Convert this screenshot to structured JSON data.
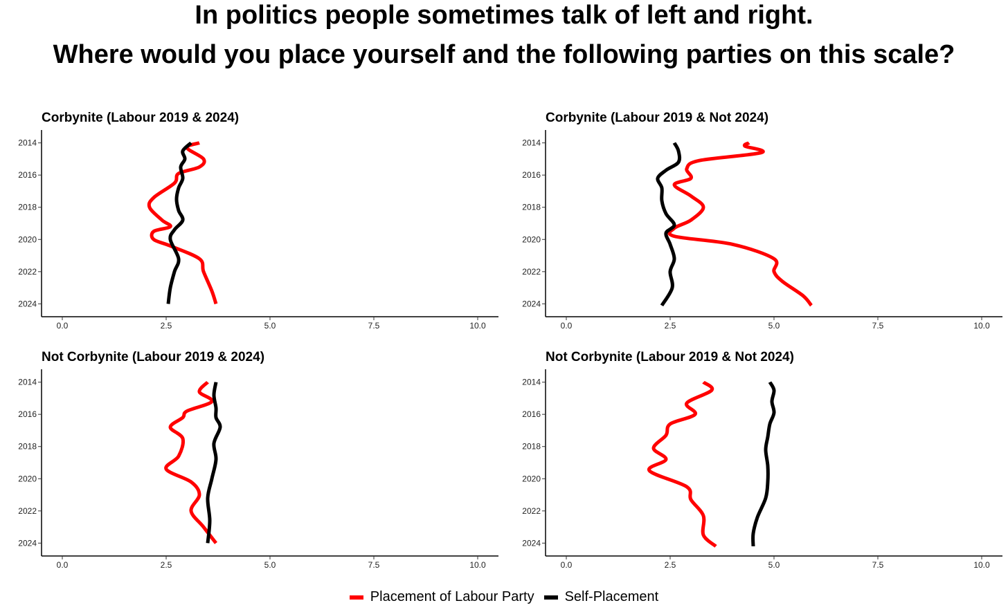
{
  "title": {
    "line1": "In politics people sometimes talk of left and right.",
    "line2": "Where would you place yourself and the following parties on this scale?"
  },
  "colors": {
    "labour_placement": "#ff0000",
    "self_placement": "#000000"
  },
  "chart_data": [
    {
      "type": "line",
      "title": "Corbynite (Labour 2019 & 2024)",
      "xlim": [
        -0.5,
        10.5
      ],
      "ylim": [
        2013.2,
        2024.8
      ],
      "x_ticks": [
        "0.0",
        "2.5",
        "5.0",
        "7.5",
        "10.0"
      ],
      "y_ticks": [
        "2014",
        "2016",
        "2018",
        "2020",
        "2022",
        "2024"
      ],
      "grid": false,
      "legend": "bottom",
      "series": [
        {
          "name": "Placement of Labour Party",
          "color": "#ff0000",
          "x": [
            3.3,
            3.0,
            3.4,
            3.3,
            2.8,
            2.7,
            2.2,
            2.1,
            2.4,
            2.6,
            2.2,
            2.2,
            2.6,
            3.3,
            3.4,
            3.6,
            3.7
          ],
          "y": [
            2014,
            2014.3,
            2015,
            2015.5,
            2015.9,
            2016.5,
            2017.4,
            2018,
            2018.8,
            2019.2,
            2019.5,
            2020,
            2020.4,
            2021.2,
            2022,
            2023.2,
            2024
          ]
        },
        {
          "name": "Self-Placement",
          "color": "#000000",
          "x": [
            3.1,
            2.9,
            2.95,
            2.85,
            2.9,
            2.8,
            2.75,
            2.8,
            2.9,
            2.7,
            2.6,
            2.8,
            2.7,
            2.6,
            2.55
          ],
          "y": [
            2014,
            2014.5,
            2015,
            2015.5,
            2016.2,
            2016.8,
            2017.5,
            2018.2,
            2018.8,
            2019.4,
            2020,
            2021.2,
            2022,
            2023,
            2024
          ]
        }
      ]
    },
    {
      "type": "line",
      "title": "Corbynite (Labour 2019 & Not 2024)",
      "xlim": [
        -0.5,
        10.5
      ],
      "ylim": [
        2013.2,
        2024.8
      ],
      "x_ticks": [
        "0.0",
        "2.5",
        "5.0",
        "7.5",
        "10.0"
      ],
      "y_ticks": [
        "2014",
        "2016",
        "2018",
        "2020",
        "2022",
        "2024"
      ],
      "grid": false,
      "legend": "bottom",
      "series": [
        {
          "name": "Placement of Labour Party",
          "color": "#ff0000",
          "x": [
            4.4,
            4.3,
            4.7,
            3.2,
            2.9,
            3.0,
            2.6,
            3.0,
            3.3,
            3.0,
            2.6,
            2.6,
            4.0,
            5.0,
            5.0,
            5.2,
            5.7,
            5.9
          ],
          "y": [
            2014,
            2014.2,
            2014.6,
            2015.1,
            2015.6,
            2016.2,
            2016.6,
            2017.3,
            2018,
            2018.8,
            2019.3,
            2019.8,
            2020.3,
            2021.2,
            2022,
            2022.6,
            2023.5,
            2024.1
          ]
        },
        {
          "name": "Self-Placement",
          "color": "#000000",
          "x": [
            2.6,
            2.7,
            2.7,
            2.4,
            2.2,
            2.3,
            2.3,
            2.4,
            2.6,
            2.4,
            2.5,
            2.6,
            2.5,
            2.55,
            2.3
          ],
          "y": [
            2014,
            2014.5,
            2015.2,
            2015.7,
            2016.2,
            2016.8,
            2017.6,
            2018.4,
            2019.1,
            2019.6,
            2020.3,
            2021.2,
            2022,
            2023,
            2024.1
          ]
        }
      ]
    },
    {
      "type": "line",
      "title": "Not Corbynite (Labour 2019 & 2024)",
      "xlim": [
        -0.5,
        10.5
      ],
      "ylim": [
        2013.2,
        2024.8
      ],
      "x_ticks": [
        "0.0",
        "2.5",
        "5.0",
        "7.5",
        "10.0"
      ],
      "y_ticks": [
        "2014",
        "2016",
        "2018",
        "2020",
        "2022",
        "2024"
      ],
      "grid": false,
      "legend": "bottom",
      "series": [
        {
          "name": "Placement of Labour Party",
          "color": "#ff0000",
          "x": [
            3.5,
            3.3,
            3.6,
            3.0,
            2.9,
            2.6,
            2.9,
            2.8,
            2.5,
            3.1,
            3.3,
            3.1,
            3.4,
            3.7
          ],
          "y": [
            2014,
            2014.6,
            2015.2,
            2015.8,
            2016.2,
            2016.8,
            2017.5,
            2018.6,
            2019.4,
            2020.2,
            2021,
            2022,
            2023,
            2024
          ]
        },
        {
          "name": "Self-Placement",
          "color": "#000000",
          "x": [
            3.7,
            3.65,
            3.7,
            3.7,
            3.8,
            3.65,
            3.7,
            3.6,
            3.5,
            3.55,
            3.5
          ],
          "y": [
            2014,
            2014.8,
            2015.6,
            2016.2,
            2016.8,
            2017.8,
            2018.8,
            2020,
            2021.2,
            2022.6,
            2024
          ]
        }
      ]
    },
    {
      "type": "line",
      "title": "Not Corbynite (Labour 2019 & Not 2024)",
      "xlim": [
        -0.5,
        10.5
      ],
      "ylim": [
        2013.2,
        2024.8
      ],
      "x_ticks": [
        "0.0",
        "2.5",
        "5.0",
        "7.5",
        "10.0"
      ],
      "y_ticks": [
        "2014",
        "2016",
        "2018",
        "2020",
        "2022",
        "2024"
      ],
      "grid": false,
      "legend": "bottom",
      "series": [
        {
          "name": "Placement of Labour Party",
          "color": "#ff0000",
          "x": [
            3.3,
            3.5,
            2.9,
            3.1,
            2.5,
            2.4,
            2.1,
            2.4,
            2.0,
            2.9,
            3.0,
            3.3,
            3.3,
            3.6
          ],
          "y": [
            2014,
            2014.5,
            2015.3,
            2016,
            2016.6,
            2017.3,
            2018.1,
            2018.8,
            2019.5,
            2020.5,
            2021.3,
            2022.3,
            2023.5,
            2024.2
          ]
        },
        {
          "name": "Self-Placement",
          "color": "#000000",
          "x": [
            4.9,
            5.0,
            4.95,
            5.0,
            4.9,
            4.85,
            4.8,
            4.85,
            4.85,
            4.8,
            4.6,
            4.5,
            4.5
          ],
          "y": [
            2014,
            2014.5,
            2015.2,
            2015.9,
            2016.6,
            2017.4,
            2018.2,
            2019.2,
            2020.2,
            2021.2,
            2022.4,
            2023.4,
            2024.2
          ]
        }
      ]
    }
  ],
  "legend": {
    "items": [
      {
        "label": "Placement of Labour Party",
        "color": "#ff0000"
      },
      {
        "label": "Self-Placement",
        "color": "#000000"
      }
    ]
  }
}
